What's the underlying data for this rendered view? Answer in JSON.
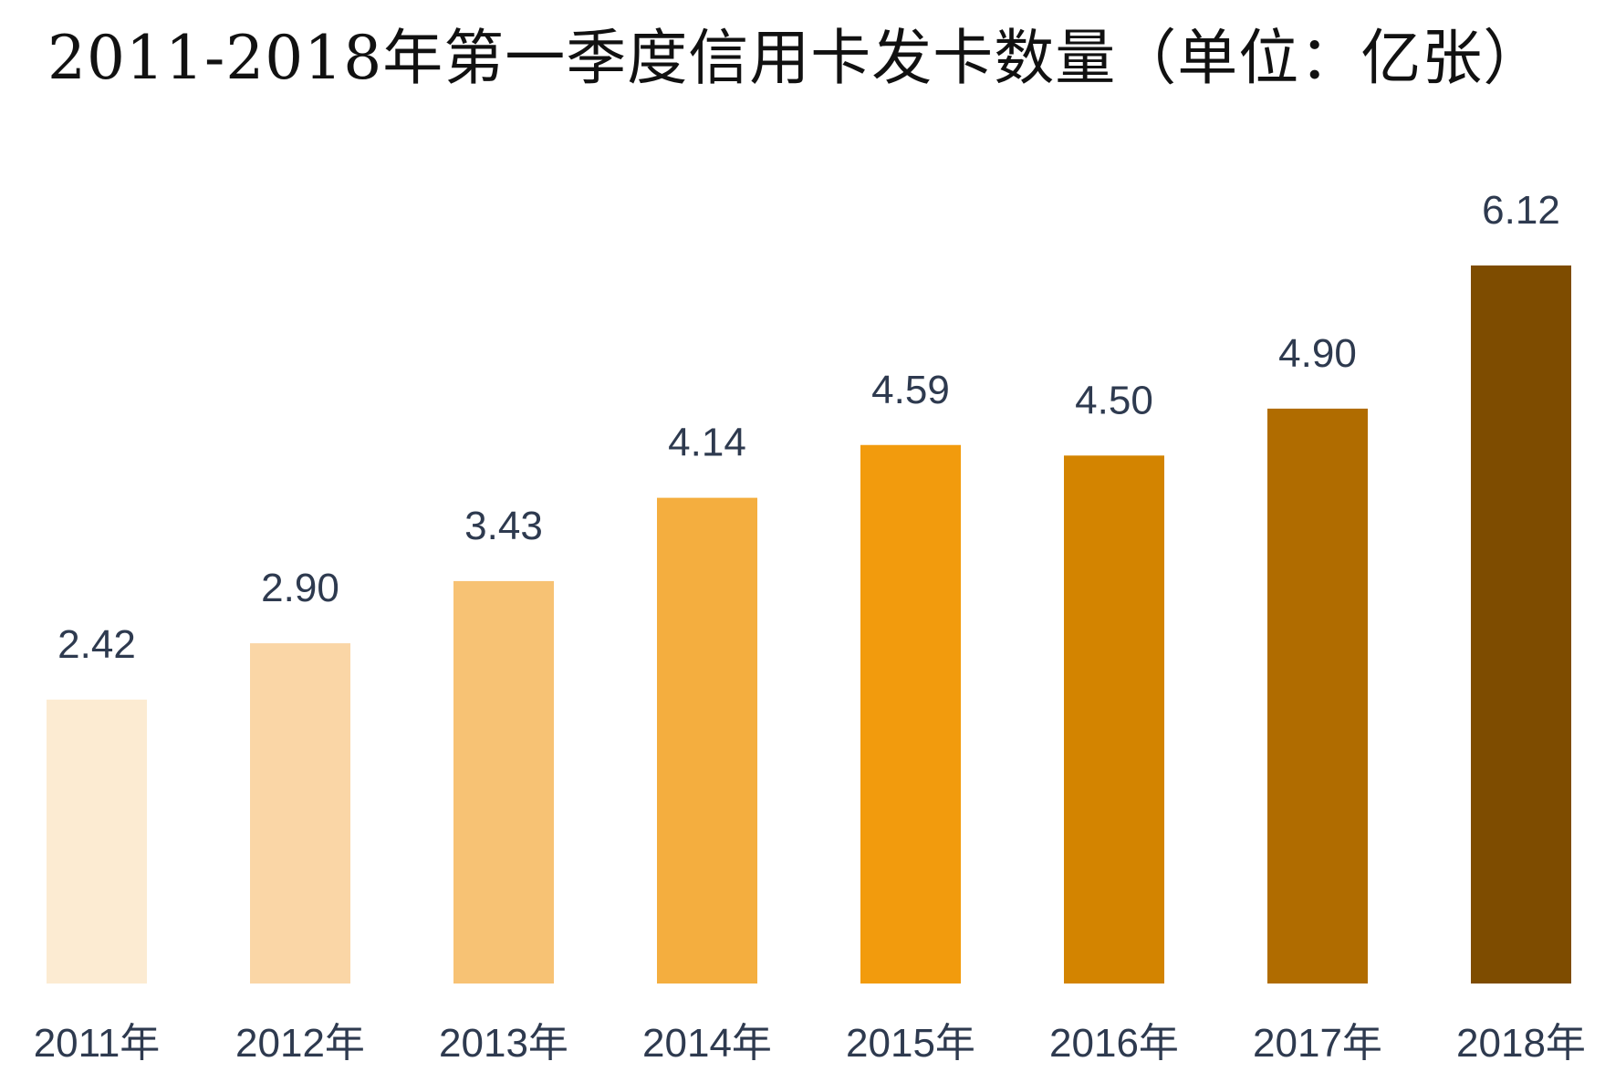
{
  "chart_data": {
    "type": "bar",
    "title": "2011-2018年第一季度信用卡发卡数量（单位：亿张）",
    "categories": [
      "2011年",
      "2012年",
      "2013年",
      "2014年",
      "2015年",
      "2016年",
      "2017年",
      "2018年"
    ],
    "values": [
      2.42,
      2.9,
      3.43,
      4.14,
      4.59,
      4.5,
      4.9,
      6.12
    ],
    "value_labels": [
      "2.42",
      "2.90",
      "3.43",
      "4.14",
      "4.59",
      "4.50",
      "4.90",
      "6.12"
    ],
    "bar_colors": [
      "#fcebd2",
      "#fad6a6",
      "#f7c274",
      "#f4ae3f",
      "#f29b0d",
      "#d38400",
      "#b06c00",
      "#7e4c00"
    ],
    "xlabel": "",
    "ylabel": "",
    "ylim": [
      0,
      6.12
    ],
    "grid": false,
    "legend": "none"
  }
}
